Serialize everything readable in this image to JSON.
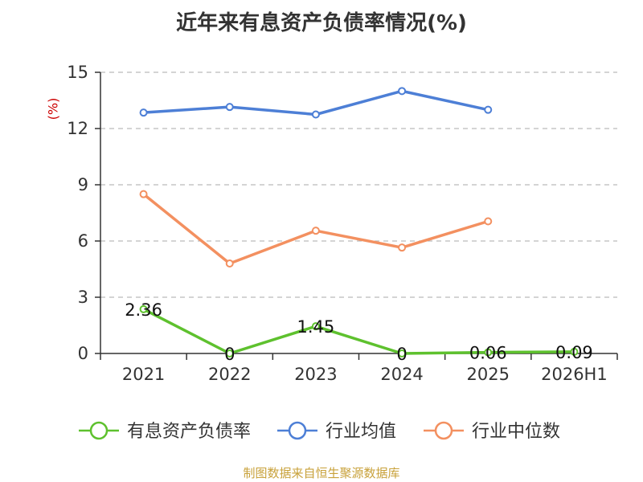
{
  "chart_data": {
    "type": "line",
    "title": "近年来有息资产负债率情况(%)",
    "ylabel": "(%)",
    "categories": [
      "2021",
      "2022",
      "2023",
      "2024",
      "2025",
      "2026H1"
    ],
    "ylim": [
      0,
      15
    ],
    "yticks": [
      "0",
      "3",
      "6",
      "9",
      "12",
      "15"
    ],
    "grid": true,
    "legend_position": "bottom",
    "series": [
      {
        "name": "有息资产负债率",
        "color": "#5ec12e",
        "values": [
          2.36,
          0,
          1.45,
          0,
          0.06,
          0.09
        ],
        "labels": [
          "2.36",
          "0",
          "1.45",
          "0",
          "0.06",
          "0.09"
        ]
      },
      {
        "name": "行业均值",
        "color": "#4d7fd6",
        "values": [
          12.85,
          13.15,
          12.75,
          14.0,
          13.0,
          null
        ]
      },
      {
        "name": "行业中位数",
        "color": "#f39060",
        "values": [
          8.5,
          4.8,
          6.55,
          5.65,
          7.05,
          null
        ]
      }
    ]
  },
  "source": "制图数据来自恒生聚源数据库"
}
